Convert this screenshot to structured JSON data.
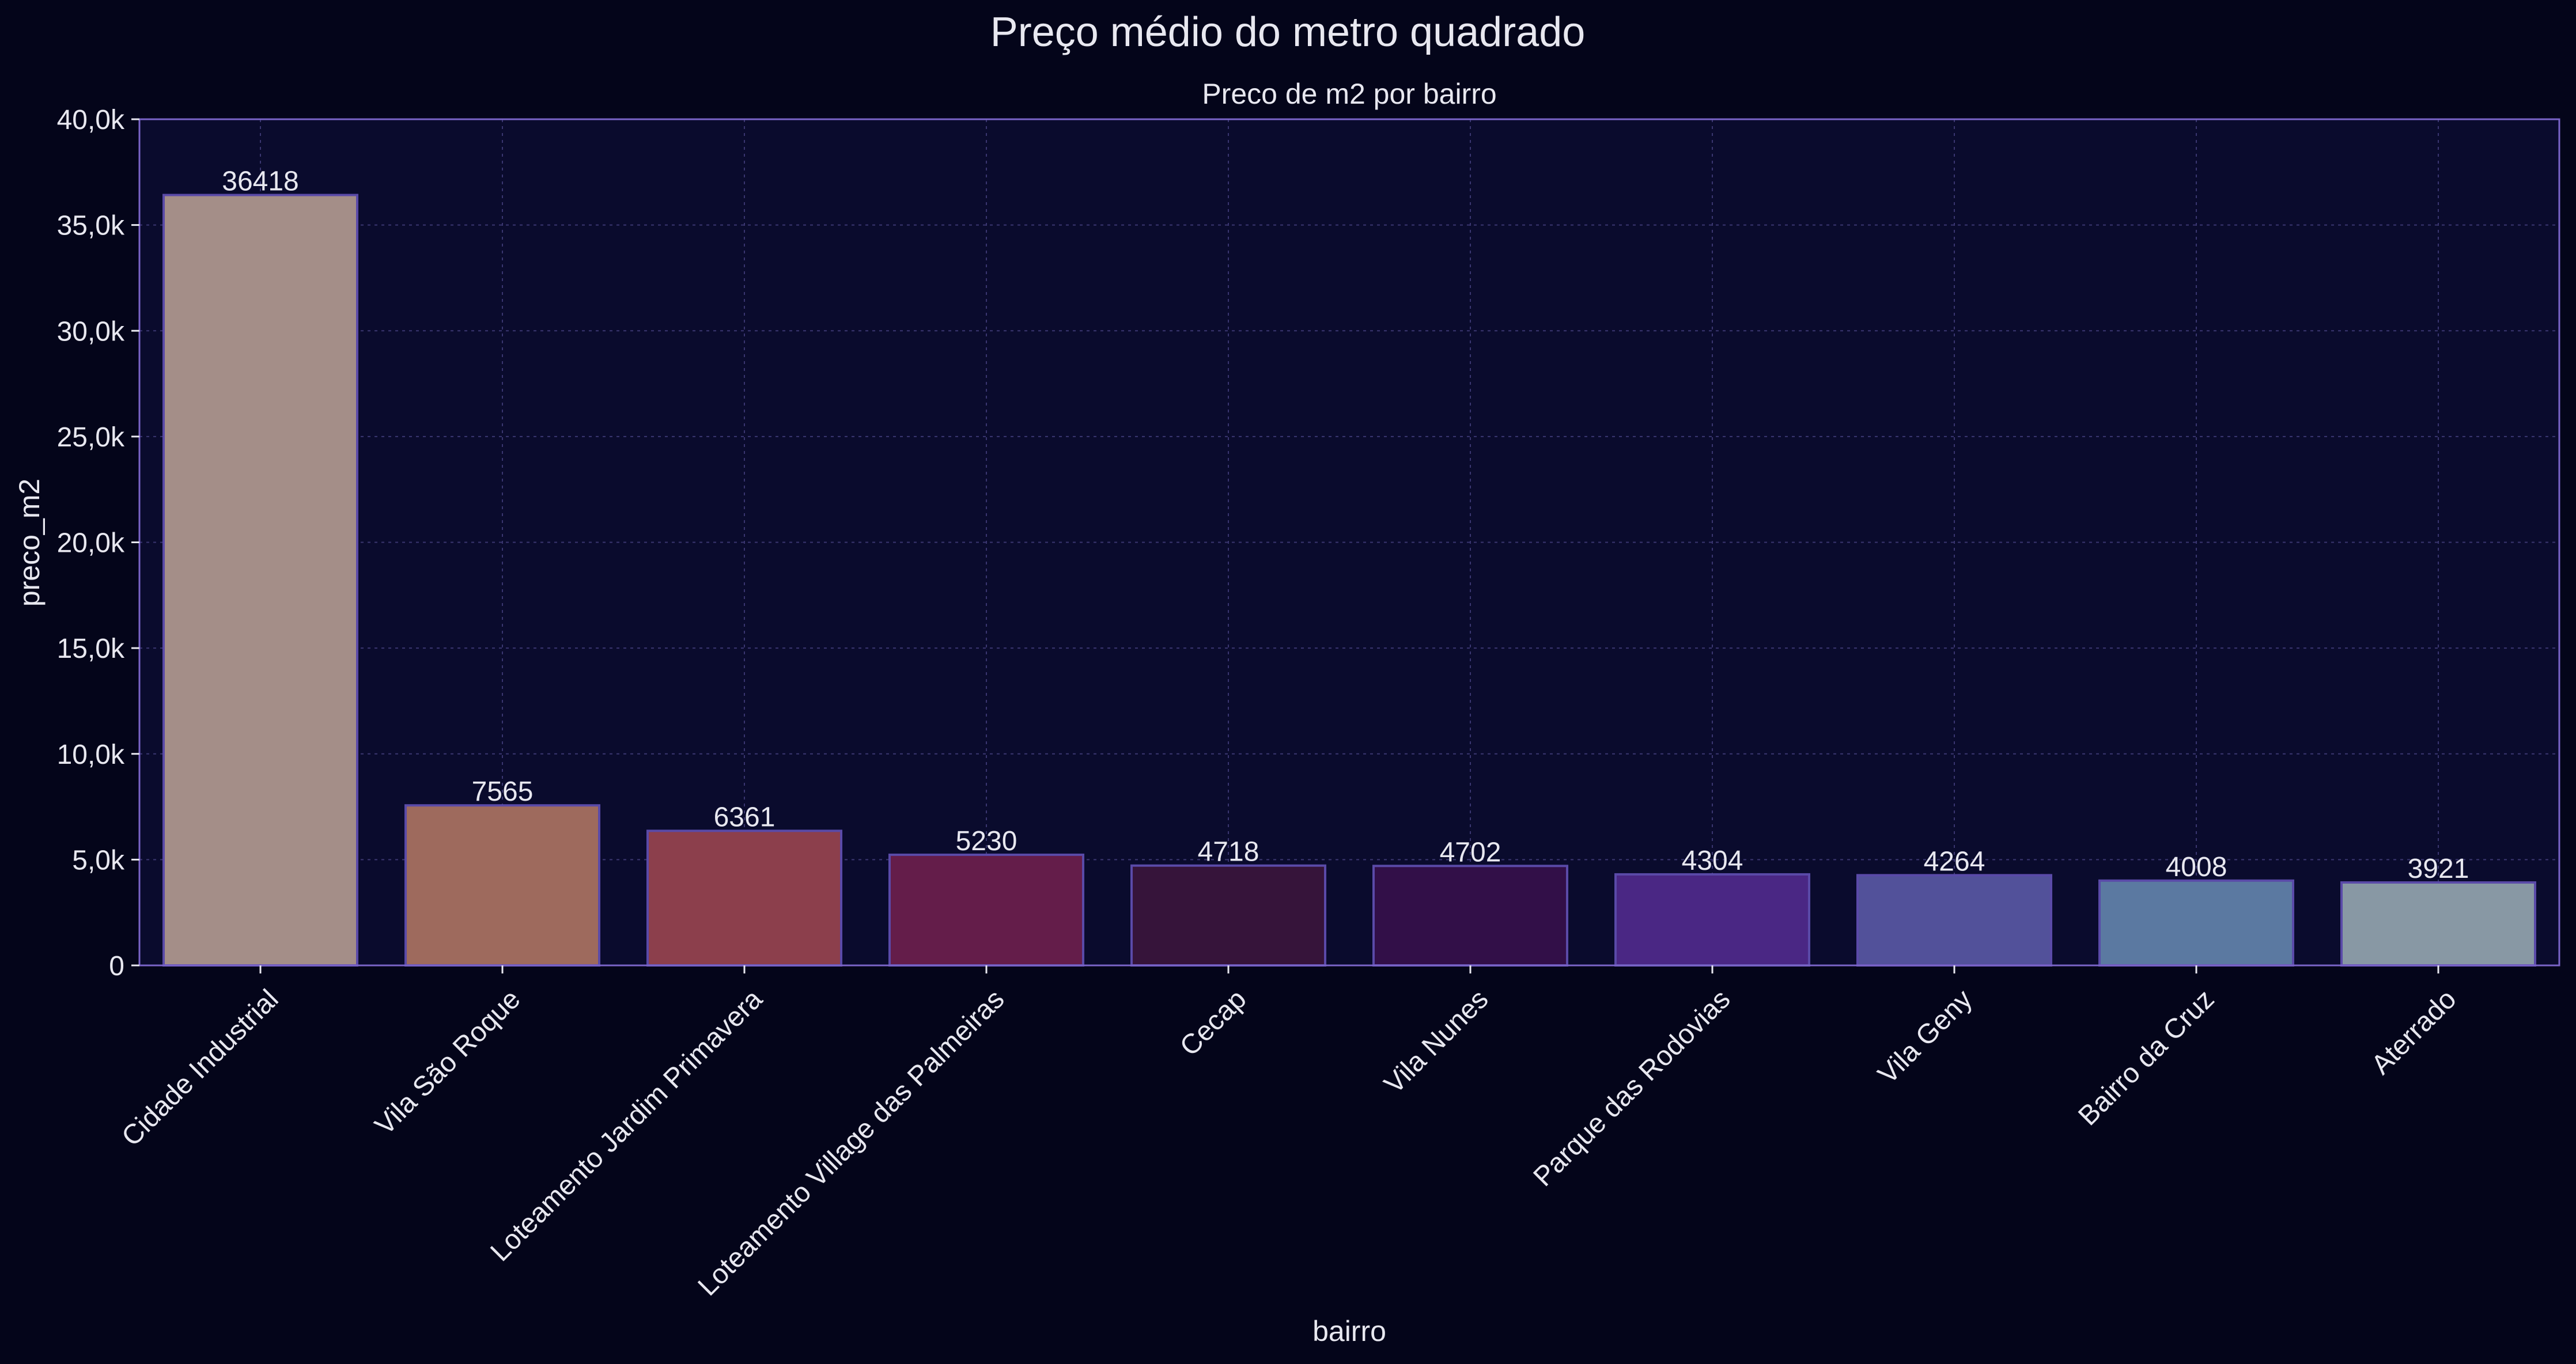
{
  "suptitle": "Preço médio do metro quadrado",
  "chart_data": {
    "type": "bar",
    "title": "Preco de m2 por bairro",
    "xlabel": "bairro",
    "ylabel": "preco_m2",
    "ylim": [
      0,
      40000
    ],
    "yticks": [
      0,
      5000,
      10000,
      15000,
      20000,
      25000,
      30000,
      35000,
      40000
    ],
    "ytick_labels": [
      "0",
      "5,0k",
      "10,0k",
      "15,0k",
      "20,0k",
      "25,0k",
      "30,0k",
      "35,0k",
      "40,0k"
    ],
    "grid": true,
    "categories": [
      "Cidade Industrial",
      "Vila São Roque",
      "Loteamento Jardim Primavera",
      "Loteamento Village das Palmeiras",
      "Cecap",
      "Vila Nunes",
      "Parque das Rodovias",
      "Vila Geny",
      "Bairro da Cruz",
      "Aterrado"
    ],
    "values": [
      36418,
      7565,
      6361,
      5230,
      4718,
      4702,
      4304,
      4264,
      4008,
      3921
    ],
    "data_labels": [
      "36418",
      "7565",
      "6361",
      "5230",
      "4718",
      "4702",
      "4304",
      "4264",
      "4008",
      "3921"
    ],
    "colors": [
      "#a48e88",
      "#9e6a5d",
      "#8c3f4c",
      "#641d4a",
      "#36143a",
      "#320f48",
      "#4a2784",
      "#52519a",
      "#5b79a1",
      "#8898a4"
    ]
  },
  "theme": {
    "background": "#04051a",
    "plot_background": "#0a0b2d",
    "frame_color": "#7a64c8",
    "grid_color": "#3a3670",
    "bar_edge": "#5a4aa8",
    "text_color": "#e8e8f0"
  }
}
